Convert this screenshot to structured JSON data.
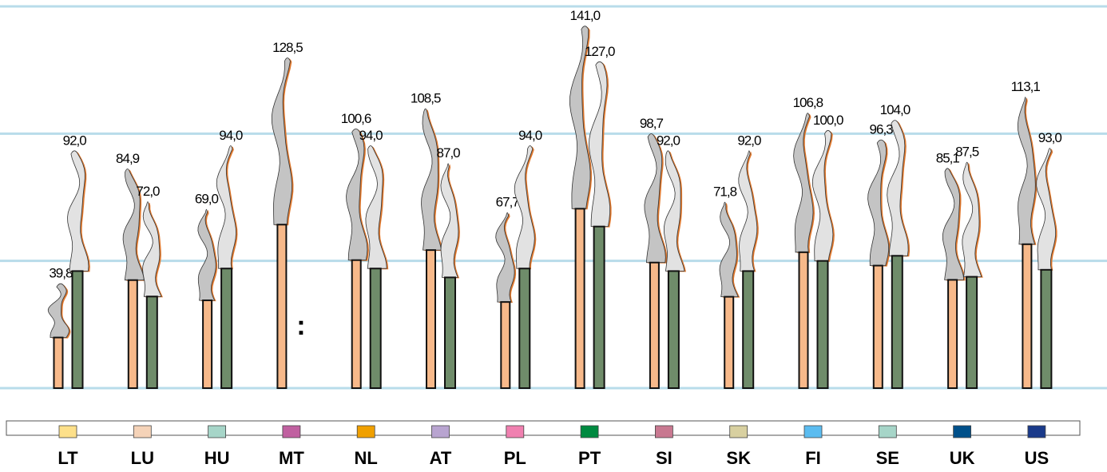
{
  "chart_data": {
    "type": "chimney-bar",
    "categories": [
      "LT",
      "LU",
      "HU",
      "MT",
      "NL",
      "AT",
      "PL",
      "PT",
      "SI",
      "SK",
      "FI",
      "SE",
      "UK",
      "US"
    ],
    "category_colors": [
      "#fde08a",
      "#f5d3b8",
      "#a6d5c8",
      "#c060a0",
      "#f0a000",
      "#b8a4d0",
      "#f080b0",
      "#008a40",
      "#c87890",
      "#d8d0a0",
      "#5bbcf0",
      "#a6d5c8",
      "#00508a",
      "#1a3a8a"
    ],
    "series": [
      {
        "color": "#f7b98a",
        "smoke": "#c4c4c4",
        "values": [
          39.8,
          84.9,
          69.0,
          128.5,
          100.6,
          108.5,
          67.7,
          141.0,
          98.7,
          71.8,
          106.8,
          96.3,
          85.1,
          113.1
        ],
        "value_labels": [
          "39,8",
          "84,9",
          "69,0",
          "128,5",
          "100,6",
          "108,5",
          "67,7",
          "141,0",
          "98,7",
          "71,8",
          "106,8",
          "96,3",
          "85,1",
          "113,1"
        ]
      },
      {
        "color": "#6f8c6a",
        "smoke": "#e2e2e2",
        "values": [
          92.0,
          72.0,
          94.0,
          null,
          94.0,
          87.0,
          94.0,
          127.0,
          92.0,
          92.0,
          100.0,
          104.0,
          87.5,
          93.0
        ],
        "value_labels": [
          "92,0",
          "72,0",
          "94,0",
          ":",
          "94,0",
          "87,0",
          "94,0",
          "127,0",
          "92,0",
          "92,0",
          "100,0",
          "104,0",
          "87,5",
          "93,0"
        ]
      }
    ],
    "ylim": [
      0,
      150
    ],
    "yticks": [
      0,
      50,
      100,
      150
    ],
    "grid": true
  }
}
